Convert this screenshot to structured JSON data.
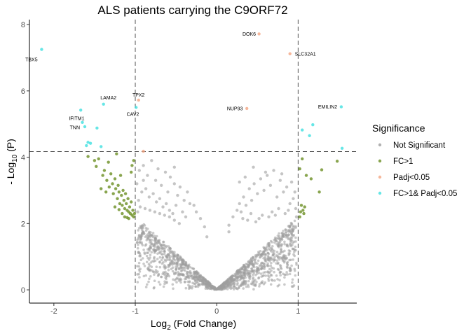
{
  "chart_data": {
    "type": "scatter",
    "title": "ALS patients carrying the C9ORF72",
    "xlabel": {
      "prefix": "Log",
      "sub": "2",
      "suffix": "  (Fold Change)"
    },
    "ylabel": {
      "prefix": "- Log",
      "sub": "10",
      "suffix": "  (P)"
    },
    "xlim": [
      -2.3,
      1.72
    ],
    "ylim": [
      -0.4,
      8.15
    ],
    "x_ticks": [
      -2,
      -1,
      0,
      1
    ],
    "y_ticks": [
      0,
      2,
      4,
      6,
      8
    ],
    "x_tick_labels": [
      "-2",
      "-1",
      "0",
      "1"
    ],
    "y_tick_labels": [
      "0",
      "2",
      "4",
      "6",
      "8"
    ],
    "grid": false,
    "legend_position": "right",
    "thresholds": {
      "fc_lines": [
        -1,
        1
      ],
      "p_line": 4.17
    },
    "legend": {
      "title": "Significance",
      "entries": [
        {
          "label": "Not Significant",
          "color": "#9e9e9e"
        },
        {
          "label": "FC>1",
          "color": "#6b8e23"
        },
        {
          "label": "Padj<0.05",
          "color": "#f4a582"
        },
        {
          "label": "FC>1& Padj<0.05",
          "color": "#40e0e0"
        }
      ]
    },
    "series": [
      {
        "name": "FC>1& Padj<0.05",
        "color": "#40e0e0",
        "points": [
          [
            -2.15,
            7.25
          ],
          [
            -1.39,
            5.6
          ],
          [
            -1.67,
            5.42
          ],
          [
            -1.65,
            5.05
          ],
          [
            -1.62,
            4.92
          ],
          [
            -1.47,
            4.88
          ],
          [
            -1.58,
            4.45
          ],
          [
            -1.55,
            4.42
          ],
          [
            -1.42,
            4.32
          ],
          [
            -1.6,
            4.35
          ],
          [
            -0.99,
            5.5
          ],
          [
            1.53,
            5.52
          ],
          [
            1.18,
            4.98
          ],
          [
            1.05,
            4.82
          ],
          [
            1.14,
            4.65
          ],
          [
            1.54,
            4.27
          ]
        ]
      },
      {
        "name": "Padj<0.05",
        "color": "#f4a582",
        "points": [
          [
            0.52,
            7.72
          ],
          [
            0.9,
            7.12
          ],
          [
            0.37,
            5.47
          ],
          [
            -0.96,
            5.72
          ],
          [
            -0.9,
            4.18
          ]
        ]
      },
      {
        "name": "FC>1",
        "color": "#6b8e23",
        "points": [
          [
            -1.58,
            4.02
          ],
          [
            -1.5,
            3.9
          ],
          [
            -1.48,
            3.72
          ],
          [
            -1.45,
            3.95
          ],
          [
            -1.4,
            3.45
          ],
          [
            -1.38,
            3.6
          ],
          [
            -1.35,
            3.3
          ],
          [
            -1.33,
            3.85
          ],
          [
            -1.32,
            3.1
          ],
          [
            -1.3,
            3.5
          ],
          [
            -1.28,
            3.2
          ],
          [
            -1.27,
            2.9
          ],
          [
            -1.25,
            3.35
          ],
          [
            -1.24,
            3.05
          ],
          [
            -1.22,
            2.75
          ],
          [
            -1.21,
            3.15
          ],
          [
            -1.2,
            2.95
          ],
          [
            -1.19,
            2.6
          ],
          [
            -1.18,
            3.45
          ],
          [
            -1.17,
            2.85
          ],
          [
            -1.16,
            2.55
          ],
          [
            -1.15,
            3.0
          ],
          [
            -1.14,
            2.7
          ],
          [
            -1.13,
            2.45
          ],
          [
            -1.12,
            2.9
          ],
          [
            -1.11,
            2.6
          ],
          [
            -1.1,
            2.4
          ],
          [
            -1.09,
            2.75
          ],
          [
            -1.08,
            2.35
          ],
          [
            -1.07,
            2.5
          ],
          [
            -1.06,
            2.3
          ],
          [
            -1.05,
            2.65
          ],
          [
            -1.04,
            2.25
          ],
          [
            -1.03,
            2.4
          ],
          [
            -1.02,
            2.2
          ],
          [
            -1.01,
            2.3
          ],
          [
            -1.16,
            2.3
          ],
          [
            -1.13,
            2.2
          ],
          [
            -1.1,
            2.18
          ],
          [
            -1.08,
            2.15
          ],
          [
            -1.25,
            2.5
          ],
          [
            -1.2,
            2.42
          ],
          [
            -1.36,
            2.95
          ],
          [
            -1.42,
            3.05
          ],
          [
            -1.02,
            3.9
          ],
          [
            -1.04,
            3.75
          ],
          [
            -1.05,
            3.55
          ],
          [
            -1.23,
            4.1
          ],
          [
            1.05,
            3.95
          ],
          [
            1.02,
            3.65
          ],
          [
            1.1,
            3.45
          ],
          [
            1.16,
            3.35
          ],
          [
            1.29,
            3.62
          ],
          [
            1.26,
            2.95
          ],
          [
            1.48,
            3.88
          ],
          [
            1.03,
            2.35
          ],
          [
            1.06,
            2.4
          ],
          [
            1.08,
            2.5
          ],
          [
            1.04,
            2.55
          ],
          [
            1.07,
            2.3
          ],
          [
            1.02,
            2.2
          ]
        ]
      },
      {
        "name": "Not Significant",
        "color": "#9e9e9e",
        "points": [
          [
            -0.95,
            3.6
          ],
          [
            -0.9,
            3.75
          ],
          [
            -0.85,
            3.45
          ],
          [
            -0.8,
            3.9
          ],
          [
            -0.75,
            3.3
          ],
          [
            -0.72,
            3.65
          ],
          [
            -0.68,
            3.15
          ],
          [
            -0.63,
            3.55
          ],
          [
            -0.6,
            2.95
          ],
          [
            -0.57,
            3.4
          ],
          [
            -0.52,
            3.2
          ],
          [
            -0.48,
            2.85
          ],
          [
            -0.45,
            3.1
          ],
          [
            -0.4,
            2.7
          ],
          [
            -0.36,
            2.95
          ],
          [
            -0.33,
            2.6
          ],
          [
            -0.28,
            2.55
          ],
          [
            -0.25,
            2.35
          ],
          [
            -0.2,
            2.15
          ],
          [
            -0.15,
            1.9
          ],
          [
            -0.92,
            2.95
          ],
          [
            -0.87,
            3.05
          ],
          [
            -0.83,
            2.8
          ],
          [
            -0.78,
            2.9
          ],
          [
            -0.74,
            2.65
          ],
          [
            -0.7,
            2.75
          ],
          [
            -0.66,
            2.5
          ],
          [
            -0.62,
            2.6
          ],
          [
            -0.58,
            2.4
          ],
          [
            -0.54,
            2.3
          ],
          [
            -0.5,
            2.55
          ],
          [
            -0.94,
            2.5
          ],
          [
            -0.88,
            2.45
          ],
          [
            -0.82,
            2.4
          ],
          [
            -0.76,
            2.35
          ],
          [
            -0.7,
            2.3
          ],
          [
            -0.64,
            2.25
          ],
          [
            -0.58,
            2.2
          ],
          [
            -0.52,
            2.1
          ],
          [
            -0.46,
            2.0
          ],
          [
            -0.42,
            2.35
          ],
          [
            -0.38,
            2.2
          ],
          [
            0.15,
            1.95
          ],
          [
            0.2,
            2.2
          ],
          [
            0.25,
            2.4
          ],
          [
            0.28,
            2.6
          ],
          [
            0.3,
            2.35
          ],
          [
            0.33,
            2.8
          ],
          [
            0.36,
            2.55
          ],
          [
            0.4,
            3.05
          ],
          [
            0.43,
            2.7
          ],
          [
            0.46,
            3.2
          ],
          [
            0.5,
            2.9
          ],
          [
            0.54,
            3.35
          ],
          [
            0.58,
            3.0
          ],
          [
            0.62,
            3.45
          ],
          [
            0.66,
            3.15
          ],
          [
            0.7,
            3.6
          ],
          [
            0.74,
            2.8
          ],
          [
            0.78,
            3.3
          ],
          [
            0.82,
            2.95
          ],
          [
            0.86,
            3.1
          ],
          [
            0.9,
            2.6
          ],
          [
            0.94,
            2.75
          ],
          [
            0.97,
            2.45
          ],
          [
            0.35,
            3.4
          ],
          [
            0.28,
            3.25
          ],
          [
            0.45,
            3.7
          ],
          [
            0.6,
            3.55
          ],
          [
            0.8,
            3.5
          ],
          [
            0.92,
            3.25
          ],
          [
            0.88,
            2.4
          ],
          [
            0.84,
            2.3
          ],
          [
            0.76,
            2.45
          ],
          [
            0.72,
            2.25
          ],
          [
            0.68,
            2.35
          ],
          [
            0.64,
            2.2
          ],
          [
            0.56,
            2.25
          ],
          [
            0.52,
            2.15
          ],
          [
            0.48,
            2.05
          ],
          [
            0.42,
            2.3
          ],
          [
            0.38,
            2.1
          ],
          [
            0.32,
            2.15
          ],
          [
            -0.52,
            3.7
          ],
          [
            -0.9,
            3.3
          ],
          [
            -0.98,
            3.2
          ],
          [
            -0.97,
            2.35
          ],
          [
            -0.96,
            2.7
          ],
          [
            0.96,
            2.95
          ],
          [
            0.98,
            2.2
          ],
          [
            0.15,
            1.75
          ],
          [
            -0.12,
            1.6
          ]
        ]
      }
    ],
    "labels": [
      {
        "text": "TBX5",
        "x": -2.15,
        "y": 7.25,
        "align": "end",
        "dx": -0.05,
        "dy": -0.3
      },
      {
        "text": "DOK6",
        "x": 0.52,
        "y": 7.72,
        "align": "end",
        "dx": -0.04,
        "dy": 0.0
      },
      {
        "text": "SLC32A1",
        "x": 0.9,
        "y": 7.12,
        "align": "start",
        "dx": 0.06,
        "dy": 0.0
      },
      {
        "text": "LAMA2",
        "x": -1.39,
        "y": 5.6,
        "align": "middle",
        "dx": 0.06,
        "dy": 0.2
      },
      {
        "text": "TPX2",
        "x": -0.96,
        "y": 5.72,
        "align": "middle",
        "dx": 0.0,
        "dy": 0.16
      },
      {
        "text": "CAV2",
        "x": -0.99,
        "y": 5.5,
        "align": "middle",
        "dx": -0.04,
        "dy": -0.2
      },
      {
        "text": "IFITM1",
        "x": -1.67,
        "y": 5.42,
        "align": "middle",
        "dx": -0.05,
        "dy": -0.25
      },
      {
        "text": "TNN",
        "x": -1.65,
        "y": 5.05,
        "align": "end",
        "dx": -0.03,
        "dy": -0.15
      },
      {
        "text": "NUP93",
        "x": 0.37,
        "y": 5.47,
        "align": "end",
        "dx": -0.05,
        "dy": 0.0
      },
      {
        "text": "EMILIN2",
        "x": 1.53,
        "y": 5.52,
        "align": "end",
        "dx": -0.05,
        "dy": 0.0
      }
    ]
  }
}
